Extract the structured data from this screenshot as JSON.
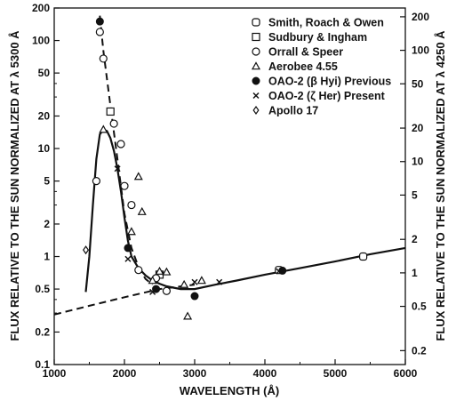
{
  "chart_data": {
    "type": "scatter",
    "xlabel": "WAVELENGTH (Å)",
    "ylabel_left": "FLUX RELATIVE TO THE SUN NORMALIZED AT λ 5300 Å",
    "ylabel_right": "FLUX RELATIVE TO THE SUN NORMALIZED AT λ 4250 Å",
    "x_scale": "linear",
    "y_scale": "log",
    "xlim": [
      1000,
      6000
    ],
    "ylim_left": [
      0.1,
      200
    ],
    "ylim_right_ref": [
      0.15,
      240
    ],
    "grid": false,
    "legend_position": "top-right",
    "x_ticks": [
      1000,
      2000,
      3000,
      4000,
      5000,
      6000
    ],
    "x_tick_labels": [
      "1000",
      "2000",
      "3000",
      "4000",
      "5000",
      "6000"
    ],
    "y_ticks_left": [
      0.1,
      0.2,
      0.5,
      1,
      2,
      5,
      10,
      20,
      50,
      100,
      200
    ],
    "y_tick_labels_left": [
      "0.1",
      "0.2",
      "0.5",
      "1",
      "2",
      "5",
      "10",
      "20",
      "50",
      "100",
      "200"
    ],
    "y_ticks_right": [
      0.2,
      0.5,
      1,
      2,
      5,
      10,
      20,
      50,
      100,
      200
    ],
    "y_tick_labels_right": [
      "0.2",
      "0.5",
      "1",
      "2",
      "5",
      "10",
      "20",
      "50",
      "100",
      "200"
    ],
    "series": [
      {
        "name": "Smith, Roach & Owen",
        "marker": "rounded-square",
        "points": [
          [
            4200,
            0.75
          ],
          [
            5400,
            1.0
          ]
        ]
      },
      {
        "name": "Sudbury & Ingham",
        "marker": "square",
        "points": [
          [
            1800,
            22
          ],
          [
            2500,
            0.68
          ]
        ]
      },
      {
        "name": "Orrall & Speer",
        "marker": "circle",
        "points": [
          [
            1600,
            5
          ],
          [
            1650,
            120
          ],
          [
            1700,
            68
          ],
          [
            1850,
            17
          ],
          [
            1950,
            11
          ],
          [
            2000,
            4.5
          ],
          [
            2100,
            3.0
          ],
          [
            2200,
            0.75
          ],
          [
            2450,
            0.63
          ],
          [
            2600,
            0.48
          ]
        ]
      },
      {
        "name": "Aerobee 4.55",
        "marker": "triangle",
        "points": [
          [
            1700,
            15
          ],
          [
            2100,
            1.7
          ],
          [
            2200,
            5.5
          ],
          [
            2250,
            2.6
          ],
          [
            2400,
            0.6
          ],
          [
            2500,
            0.73
          ],
          [
            2600,
            0.72
          ],
          [
            2850,
            0.55
          ],
          [
            2900,
            0.28
          ],
          [
            3100,
            0.6
          ]
        ]
      },
      {
        "name": "OAO-2 (β Hyi) Previous",
        "marker": "filled-circle",
        "points": [
          [
            1650,
            150
          ],
          [
            2050,
            1.2
          ],
          [
            2450,
            0.5
          ],
          [
            3000,
            0.43
          ],
          [
            4250,
            0.74
          ]
        ]
      },
      {
        "name": "OAO-2 (ζ Her) Present",
        "marker": "x",
        "points": [
          [
            1900,
            6.5
          ],
          [
            2050,
            0.95
          ],
          [
            2400,
            0.47
          ],
          [
            3000,
            0.58
          ],
          [
            3350,
            0.58
          ],
          [
            4200,
            0.73
          ]
        ]
      },
      {
        "name": "Apollo 17",
        "marker": "diamond",
        "points": [
          [
            1450,
            1.15
          ]
        ]
      }
    ],
    "curves": [
      {
        "style": "solid",
        "points": [
          [
            1450,
            0.47
          ],
          [
            1500,
            1.0
          ],
          [
            1550,
            3.0
          ],
          [
            1600,
            8.0
          ],
          [
            1650,
            13.5
          ],
          [
            1700,
            15.0
          ],
          [
            1750,
            14.5
          ],
          [
            1800,
            12.5
          ],
          [
            1850,
            9.5
          ],
          [
            1900,
            6.5
          ],
          [
            1950,
            4.0
          ],
          [
            2000,
            2.3
          ],
          [
            2050,
            1.4
          ],
          [
            2100,
            1.0
          ],
          [
            2200,
            0.78
          ],
          [
            2300,
            0.67
          ],
          [
            2400,
            0.6
          ],
          [
            2500,
            0.56
          ],
          [
            2600,
            0.53
          ],
          [
            2800,
            0.5
          ],
          [
            3000,
            0.5
          ],
          [
            3300,
            0.55
          ],
          [
            3600,
            0.6
          ],
          [
            4000,
            0.68
          ],
          [
            4500,
            0.78
          ],
          [
            5000,
            0.9
          ],
          [
            5500,
            1.05
          ],
          [
            6000,
            1.2
          ]
        ]
      },
      {
        "style": "dashed",
        "points": [
          [
            1650,
            170
          ],
          [
            1700,
            80
          ],
          [
            1800,
            25
          ],
          [
            1900,
            8
          ],
          [
            2000,
            2.5
          ],
          [
            2100,
            1.2
          ],
          [
            2200,
            0.8
          ],
          [
            2300,
            0.62
          ],
          [
            2400,
            0.55
          ]
        ]
      },
      {
        "style": "dashed",
        "points": [
          [
            1000,
            0.29
          ],
          [
            1500,
            0.35
          ],
          [
            2000,
            0.42
          ],
          [
            2500,
            0.5
          ],
          [
            3000,
            0.55
          ]
        ]
      }
    ]
  }
}
